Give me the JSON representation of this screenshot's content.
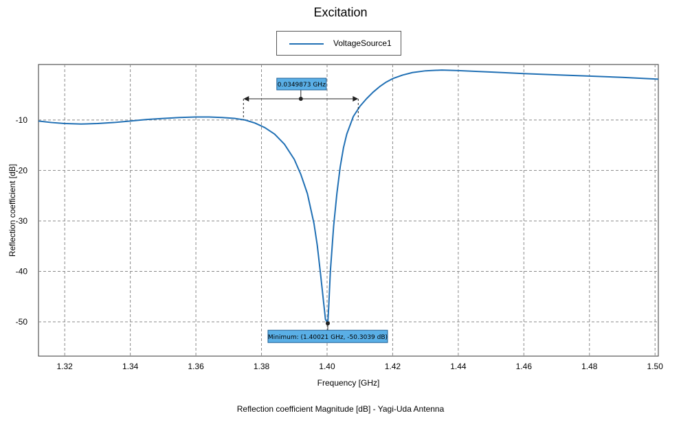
{
  "colors": {
    "series": "#1f6fb4",
    "annotation_fill": "#5aafe6",
    "annotation_border": "#1f5f96",
    "grid": "#888888"
  },
  "chart_data": {
    "type": "line",
    "title": "Excitation",
    "xlabel": "Frequency [GHz]",
    "ylabel": "Reflection coefficient [dB]",
    "footer": "Reflection coefficient Magnitude [dB] - Yagi-Uda Antenna",
    "xlim": [
      1.312,
      1.501
    ],
    "ylim": [
      -56.8,
      1
    ],
    "x_ticks": [
      1.32,
      1.34,
      1.36,
      1.38,
      1.4,
      1.42,
      1.44,
      1.46,
      1.48,
      1.5
    ],
    "x_tick_labels": [
      "1.32",
      "1.34",
      "1.36",
      "1.38",
      "1.40",
      "1.42",
      "1.44",
      "1.46",
      "1.48",
      "1.50"
    ],
    "y_ticks": [
      -10,
      -20,
      -30,
      -40,
      -50
    ],
    "y_tick_labels": [
      "-10",
      "-20",
      "-30",
      "-40",
      "-50"
    ],
    "grid": true,
    "legend": "top-center",
    "series": [
      {
        "name": "VoltageSource1",
        "x": [
          1.312,
          1.316,
          1.32,
          1.325,
          1.33,
          1.335,
          1.34,
          1.345,
          1.35,
          1.355,
          1.36,
          1.364,
          1.368,
          1.372,
          1.375,
          1.378,
          1.381,
          1.384,
          1.387,
          1.39,
          1.392,
          1.394,
          1.396,
          1.397,
          1.398,
          1.399,
          1.3995,
          1.40021,
          1.4005,
          1.401,
          1.402,
          1.403,
          1.404,
          1.405,
          1.406,
          1.408,
          1.41,
          1.412,
          1.414,
          1.416,
          1.418,
          1.42,
          1.423,
          1.426,
          1.43,
          1.435,
          1.44,
          1.45,
          1.46,
          1.47,
          1.48,
          1.49,
          1.501
        ],
        "y": [
          -10.2,
          -10.5,
          -10.7,
          -10.8,
          -10.7,
          -10.5,
          -10.2,
          -9.9,
          -9.7,
          -9.5,
          -9.4,
          -9.4,
          -9.5,
          -9.7,
          -10.0,
          -10.6,
          -11.5,
          -12.8,
          -14.8,
          -17.8,
          -20.8,
          -24.6,
          -30.5,
          -34.8,
          -40.5,
          -46.5,
          -49.5,
          -50.3039,
          -47.0,
          -40.0,
          -31.0,
          -24.5,
          -19.3,
          -15.5,
          -12.8,
          -9.3,
          -7.3,
          -5.8,
          -4.5,
          -3.4,
          -2.5,
          -1.8,
          -1.1,
          -0.6,
          -0.25,
          -0.1,
          -0.2,
          -0.5,
          -0.8,
          -1.05,
          -1.3,
          -1.55,
          -1.9
        ]
      }
    ],
    "annotations": {
      "bandwidth_label": "0.0349873 GHz",
      "bandwidth_x_start": 1.3745,
      "bandwidth_x_end": 1.4095,
      "bandwidth_x_mid": 1.392,
      "bandwidth_y": -5.8,
      "bandwidth_level": -10,
      "minimum_label": "Minimum: (1.40021 GHz, -50.3039 dB)",
      "minimum_x": 1.40021,
      "minimum_y": -50.3039
    }
  }
}
